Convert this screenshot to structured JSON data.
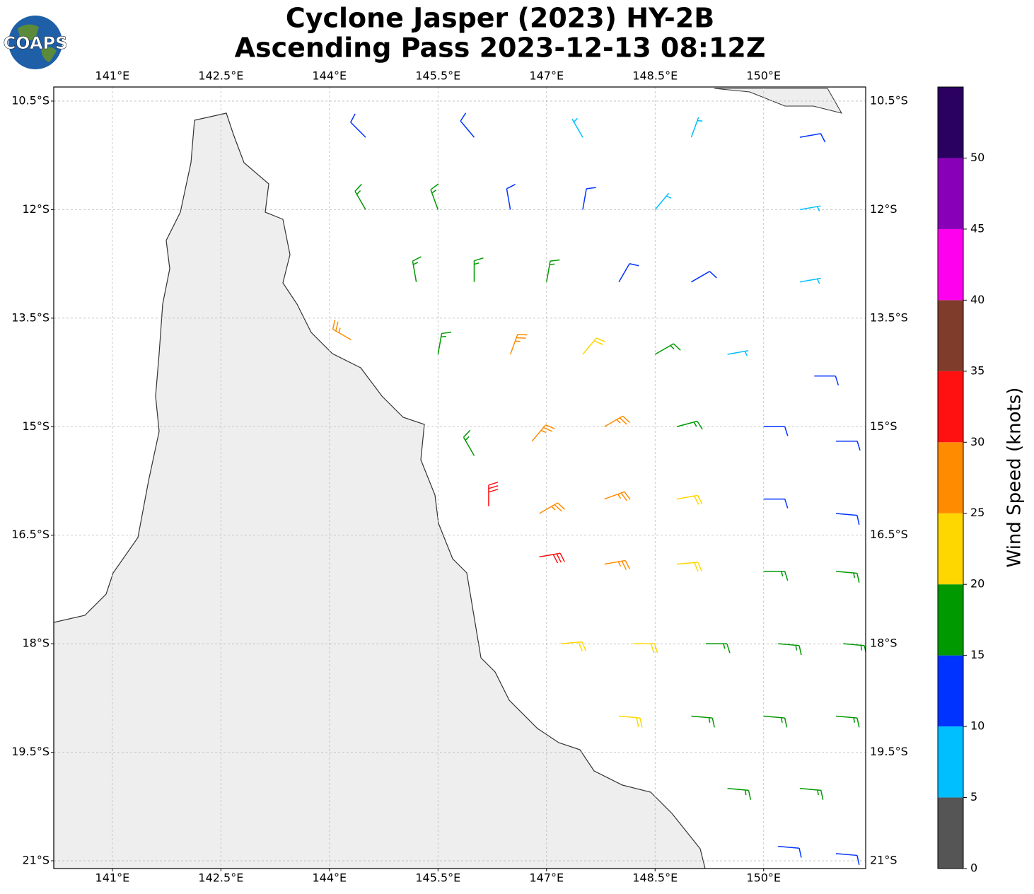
{
  "chart_data": {
    "type": "barbs",
    "title": "Cyclone Jasper (2023) HY-2B",
    "subtitle": "Ascending Pass 2023-12-13 08:12Z",
    "logo_text": "COAPS",
    "xlim": [
      140.19,
      151.41
    ],
    "ylim": [
      -21.107,
      -10.305
    ],
    "xticks": [
      {
        "value": 141,
        "label": "141°E"
      },
      {
        "value": 142.5,
        "label": "142.5°E"
      },
      {
        "value": 144,
        "label": "144°E"
      },
      {
        "value": 145.5,
        "label": "145.5°E"
      },
      {
        "value": 147,
        "label": "147°E"
      },
      {
        "value": 148.5,
        "label": "148.5°E"
      },
      {
        "value": 150,
        "label": "150°E"
      }
    ],
    "yticks": [
      {
        "value": -10.5,
        "label": "10.5°S"
      },
      {
        "value": -12,
        "label": "12°S"
      },
      {
        "value": -13.5,
        "label": "13.5°S"
      },
      {
        "value": -15,
        "label": "15°S"
      },
      {
        "value": -16.5,
        "label": "16.5°S"
      },
      {
        "value": -18,
        "label": "18°S"
      },
      {
        "value": -19.5,
        "label": "19.5°S"
      },
      {
        "value": -21,
        "label": "21°S"
      }
    ],
    "grid": true,
    "barbs": {
      "lon": [
        144.5,
        146,
        147.5,
        149,
        150.5,
        144.5,
        145.5,
        146.5,
        147.5,
        148.5,
        150.5,
        145.2,
        146,
        147,
        148,
        149,
        150.5,
        144.3,
        145.5,
        146.5,
        147.5,
        148.5,
        149.5,
        150.7,
        146,
        146.8,
        147.8,
        148.8,
        150,
        151,
        146.2,
        146.9,
        147.8,
        148.8,
        150,
        151,
        146.9,
        147.8,
        148.8,
        150,
        151,
        147.2,
        148.2,
        149.2,
        150.2,
        151.1,
        148,
        149,
        150,
        151,
        149.5,
        150.5,
        150.2,
        151
      ],
      "lat": [
        -11,
        -11,
        -11,
        -11,
        -11,
        -12,
        -12,
        -12,
        -12,
        -12,
        -12,
        -13,
        -13,
        -13,
        -13,
        -13,
        -13,
        -13.8,
        -14,
        -14,
        -14,
        -14,
        -14,
        -14.3,
        -15.4,
        -15.2,
        -15,
        -15,
        -15,
        -15.2,
        -16.1,
        -16.2,
        -16,
        -16,
        -16,
        -16.2,
        -16.8,
        -16.9,
        -16.9,
        -17,
        -17,
        -18,
        -18,
        -18,
        -18,
        -18,
        -19,
        -19,
        -19,
        -19,
        -20,
        -20,
        -20.8,
        -20.9
      ],
      "speed": [
        12,
        12,
        8,
        8,
        12,
        17,
        17,
        14,
        12,
        8,
        8,
        17,
        17,
        17,
        14,
        14,
        8,
        25,
        17,
        27,
        22,
        17,
        8,
        12,
        17,
        27,
        27,
        17,
        12,
        12,
        32,
        27,
        27,
        22,
        12,
        12,
        32,
        27,
        22,
        17,
        17,
        22,
        22,
        17,
        17,
        17,
        22,
        17,
        17,
        17,
        17,
        17,
        12,
        12
      ],
      "direction": [
        315,
        320,
        330,
        20,
        80,
        330,
        340,
        350,
        10,
        40,
        80,
        350,
        0,
        10,
        30,
        60,
        80,
        300,
        10,
        20,
        40,
        60,
        80,
        90,
        330,
        40,
        60,
        75,
        90,
        90,
        0,
        60,
        70,
        80,
        90,
        95,
        80,
        80,
        85,
        90,
        95,
        85,
        90,
        90,
        95,
        95,
        95,
        95,
        95,
        95,
        95,
        95,
        95,
        95
      ]
    },
    "colorbar": {
      "label": "Wind Speed (knots)",
      "lim": [
        0,
        55
      ],
      "bounds": [
        0,
        5,
        10,
        15,
        20,
        25,
        30,
        35,
        40,
        45,
        50,
        55
      ],
      "colors": [
        "#555555",
        "#00bfff",
        "#0033ff",
        "#009900",
        "#ffd700",
        "#ff8c00",
        "#ff1111",
        "#803c2a",
        "#ff00ee",
        "#8800b8",
        "#2a0060"
      ],
      "ticks": [
        0,
        5,
        10,
        15,
        20,
        25,
        30,
        35,
        40,
        45,
        50
      ]
    }
  }
}
